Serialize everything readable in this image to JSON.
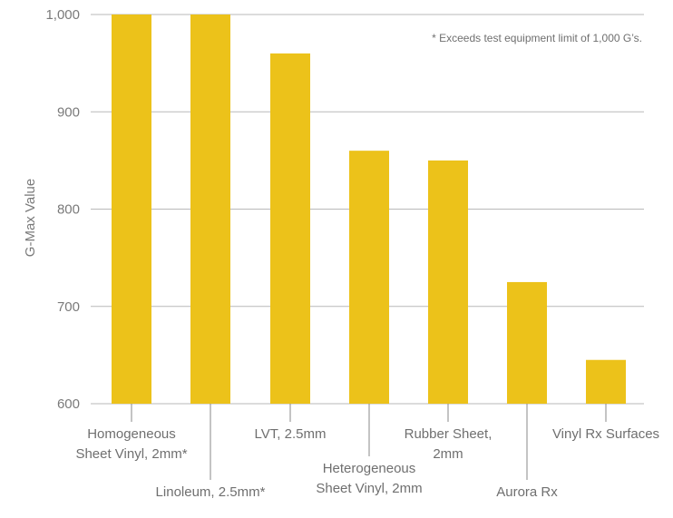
{
  "chart_data": {
    "type": "bar",
    "ylabel": "G-Max Value",
    "ylim": [
      600,
      1000
    ],
    "yticks": [
      600,
      700,
      800,
      900,
      1000
    ],
    "ytick_labels": [
      "600",
      "700",
      "800",
      "900",
      "1,000"
    ],
    "grid": true,
    "categories": [
      [
        "Homogeneous",
        "Sheet Vinyl, 2mm*"
      ],
      [
        "Linoleum, 2.5mm*"
      ],
      [
        "LVT, 2.5mm"
      ],
      [
        "Heterogeneous",
        "Sheet Vinyl, 2mm"
      ],
      [
        "Rubber Sheet,",
        "2mm"
      ],
      [
        "Aurora Rx"
      ],
      [
        "Vinyl Rx Surfaces"
      ]
    ],
    "values": [
      1000,
      1000,
      960,
      860,
      850,
      725,
      645
    ],
    "bar_color": "#ecc21a",
    "annotation": "* Exceeds test equipment limit of 1,000 G’s."
  }
}
